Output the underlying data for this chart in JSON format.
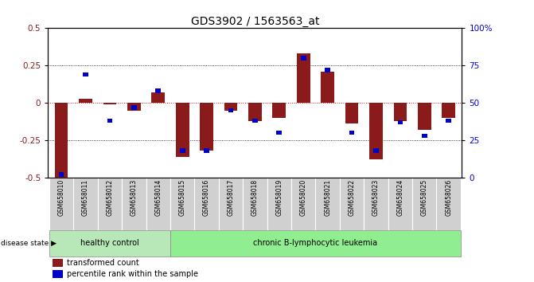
{
  "title": "GDS3902 / 1563563_at",
  "samples": [
    "GSM658010",
    "GSM658011",
    "GSM658012",
    "GSM658013",
    "GSM658014",
    "GSM658015",
    "GSM658016",
    "GSM658017",
    "GSM658018",
    "GSM658019",
    "GSM658020",
    "GSM658021",
    "GSM658022",
    "GSM658023",
    "GSM658024",
    "GSM658025",
    "GSM658026"
  ],
  "red_values": [
    -0.5,
    0.03,
    -0.01,
    -0.05,
    0.07,
    -0.36,
    -0.32,
    -0.05,
    -0.12,
    -0.1,
    0.33,
    0.21,
    -0.14,
    -0.38,
    -0.12,
    -0.18,
    -0.1
  ],
  "blue_values": [
    2,
    69,
    38,
    47,
    58,
    18,
    18,
    45,
    38,
    30,
    80,
    72,
    30,
    18,
    37,
    28,
    38
  ],
  "healthy_count": 5,
  "group1_label": "healthy control",
  "group2_label": "chronic B-lymphocytic leukemia",
  "disease_state_label": "disease state",
  "legend1": "transformed count",
  "legend2": "percentile rank within the sample",
  "red_color": "#8B1A1A",
  "blue_color": "#0000CC",
  "ylim_left": [
    -0.5,
    0.5
  ],
  "ylim_right": [
    0,
    100
  ],
  "yticks_left": [
    -0.5,
    -0.25,
    0.0,
    0.25,
    0.5
  ],
  "yticks_right": [
    0,
    25,
    50,
    75,
    100
  ],
  "bar_width": 0.55,
  "blue_bar_width": 0.22,
  "background_color": "#ffffff",
  "healthy_bg": "#b8e8b8",
  "leukemia_bg": "#90EE90",
  "xticklabel_bg": "#d0d0d0"
}
